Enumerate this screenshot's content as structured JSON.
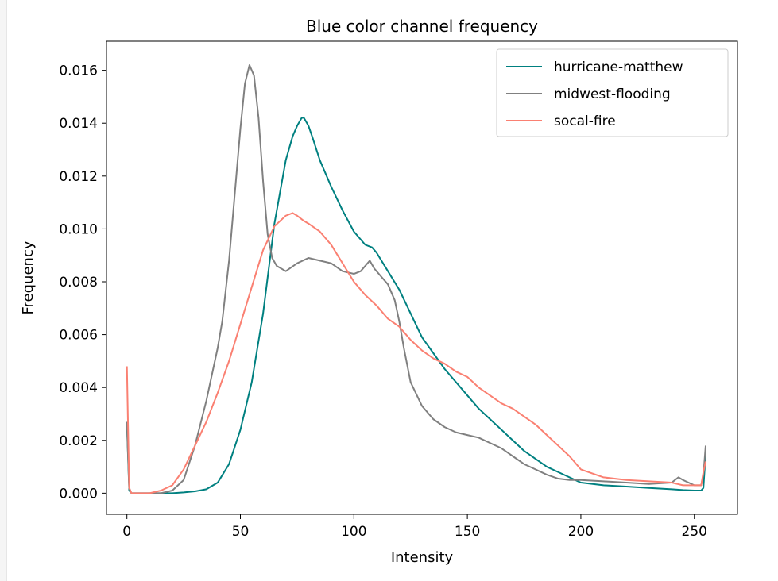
{
  "chart_data": {
    "type": "line",
    "title": "Blue color channel frequency",
    "xlabel": "Intensity",
    "ylabel": "Frequency",
    "xlim": [
      -9,
      269
    ],
    "ylim": [
      -0.0008,
      0.0171
    ],
    "xticks": [
      0,
      50,
      100,
      150,
      200,
      250
    ],
    "xtick_labels": [
      "0",
      "50",
      "100",
      "150",
      "200",
      "250"
    ],
    "yticks": [
      0.0,
      0.002,
      0.004,
      0.006,
      0.008,
      0.01,
      0.012,
      0.014,
      0.016
    ],
    "ytick_labels": [
      "0.000",
      "0.002",
      "0.004",
      "0.006",
      "0.008",
      "0.010",
      "0.012",
      "0.014",
      "0.016"
    ],
    "grid": false,
    "legend_position": "top-right",
    "series": [
      {
        "name": "hurricane-matthew",
        "color": "#008080",
        "x": [
          0,
          1,
          2,
          5,
          10,
          15,
          20,
          25,
          30,
          35,
          40,
          45,
          50,
          55,
          60,
          65,
          70,
          73,
          75,
          77,
          78,
          80,
          82,
          85,
          90,
          95,
          100,
          105,
          108,
          110,
          115,
          120,
          125,
          130,
          135,
          140,
          145,
          150,
          155,
          160,
          165,
          170,
          175,
          180,
          185,
          190,
          195,
          200,
          210,
          220,
          230,
          240,
          245,
          250,
          253,
          254,
          255
        ],
        "y": [
          0.0026,
          0.0001,
          0.0,
          0.0,
          0.0,
          0.0,
          0.0,
          3e-05,
          7e-05,
          0.00015,
          0.0004,
          0.0011,
          0.0024,
          0.0042,
          0.0068,
          0.0102,
          0.0126,
          0.0135,
          0.0139,
          0.0142,
          0.0142,
          0.0139,
          0.0134,
          0.0126,
          0.0116,
          0.0107,
          0.0099,
          0.0094,
          0.0093,
          0.0091,
          0.0084,
          0.0077,
          0.0068,
          0.0059,
          0.0053,
          0.0047,
          0.0042,
          0.0037,
          0.0032,
          0.0028,
          0.0024,
          0.002,
          0.0016,
          0.0013,
          0.001,
          0.0008,
          0.0006,
          0.0004,
          0.0003,
          0.00025,
          0.0002,
          0.00015,
          0.00012,
          0.0001,
          0.0001,
          0.0002,
          0.0015
        ]
      },
      {
        "name": "midwest-flooding",
        "color": "#808080",
        "x": [
          0,
          1,
          2,
          5,
          10,
          15,
          20,
          25,
          30,
          35,
          40,
          42,
          45,
          48,
          50,
          52,
          54,
          56,
          58,
          60,
          62,
          64,
          66,
          70,
          75,
          80,
          85,
          90,
          95,
          100,
          103,
          107,
          109,
          112,
          115,
          118,
          120,
          122,
          125,
          130,
          135,
          140,
          145,
          150,
          155,
          160,
          165,
          170,
          175,
          180,
          185,
          190,
          195,
          200,
          210,
          220,
          230,
          240,
          243,
          245,
          250,
          253,
          254,
          255
        ],
        "y": [
          0.0027,
          0.0002,
          0.0,
          0.0,
          0.0,
          0.0,
          0.0001,
          0.0005,
          0.0018,
          0.0035,
          0.0055,
          0.0065,
          0.0088,
          0.0118,
          0.0138,
          0.0155,
          0.0162,
          0.0158,
          0.0142,
          0.0118,
          0.0098,
          0.0089,
          0.0086,
          0.0084,
          0.0087,
          0.0089,
          0.0088,
          0.0087,
          0.0084,
          0.0083,
          0.0084,
          0.0088,
          0.0085,
          0.0082,
          0.0079,
          0.0073,
          0.0065,
          0.0055,
          0.0042,
          0.0033,
          0.0028,
          0.0025,
          0.0023,
          0.0022,
          0.0021,
          0.0019,
          0.0017,
          0.0014,
          0.0011,
          0.0009,
          0.0007,
          0.00055,
          0.0005,
          0.0005,
          0.00045,
          0.0004,
          0.00035,
          0.0004,
          0.0006,
          0.0005,
          0.0003,
          0.0003,
          0.0007,
          0.0018
        ]
      },
      {
        "name": "socal-fire",
        "color": "#fa8072",
        "x": [
          0,
          1,
          2,
          5,
          10,
          15,
          20,
          25,
          30,
          35,
          40,
          45,
          50,
          55,
          60,
          65,
          70,
          73,
          75,
          78,
          80,
          85,
          90,
          95,
          100,
          105,
          110,
          115,
          120,
          125,
          130,
          135,
          140,
          145,
          150,
          155,
          160,
          165,
          170,
          175,
          180,
          185,
          190,
          195,
          200,
          210,
          220,
          230,
          240,
          245,
          250,
          253,
          254,
          255
        ],
        "y": [
          0.0048,
          0.0002,
          0.0,
          0.0,
          0.0,
          0.0001,
          0.0003,
          0.0009,
          0.0018,
          0.0027,
          0.0038,
          0.005,
          0.0064,
          0.0078,
          0.0092,
          0.0101,
          0.0105,
          0.0106,
          0.0105,
          0.0103,
          0.0102,
          0.0099,
          0.0094,
          0.0087,
          0.008,
          0.0075,
          0.0071,
          0.0066,
          0.0063,
          0.0058,
          0.0054,
          0.0051,
          0.0049,
          0.0046,
          0.0044,
          0.004,
          0.0037,
          0.0034,
          0.0032,
          0.0029,
          0.0026,
          0.0022,
          0.0018,
          0.0014,
          0.0009,
          0.0006,
          0.0005,
          0.00045,
          0.0004,
          0.0003,
          0.0003,
          0.0003,
          0.0008,
          0.0012
        ]
      }
    ]
  }
}
